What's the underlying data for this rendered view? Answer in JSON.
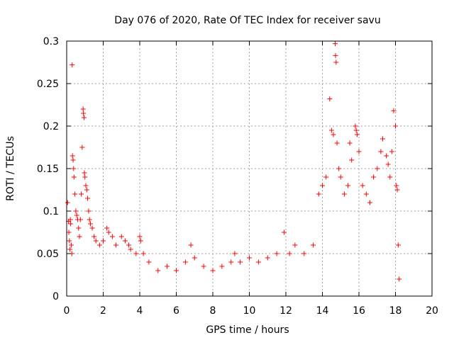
{
  "colors": {
    "series": "#ff0000",
    "grid": "#a0a0a0",
    "axis": "#000000"
  },
  "chart_data": {
    "type": "scatter",
    "title": "Day 076 of 2020, Rate Of TEC Index for receiver savu",
    "xlabel": "GPS time / hours",
    "ylabel": "ROTI / TECUs",
    "xlim": [
      0,
      20
    ],
    "ylim": [
      0,
      0.3
    ],
    "xticks": [
      0,
      2,
      4,
      6,
      8,
      10,
      12,
      14,
      16,
      18,
      20
    ],
    "yticks": [
      0,
      0.05,
      0.1,
      0.15,
      0.2,
      0.25,
      0.3
    ],
    "xtick_labels": [
      "0",
      "2",
      "4",
      "6",
      "8",
      "10",
      "12",
      "14",
      "16",
      "18",
      "20"
    ],
    "ytick_labels": [
      "0",
      "0.05",
      "0.1",
      "0.15",
      "0.2",
      "0.25",
      "0.3"
    ],
    "grid": true,
    "marker": "plus",
    "series": [
      {
        "name": "ROTI",
        "points": [
          [
            0.05,
            0.11
          ],
          [
            0.1,
            0.088
          ],
          [
            0.12,
            0.075
          ],
          [
            0.15,
            0.065
          ],
          [
            0.18,
            0.055
          ],
          [
            0.2,
            0.09
          ],
          [
            0.22,
            0.085
          ],
          [
            0.25,
            0.06
          ],
          [
            0.28,
            0.05
          ],
          [
            0.3,
            0.272
          ],
          [
            0.32,
            0.165
          ],
          [
            0.35,
            0.16
          ],
          [
            0.38,
            0.15
          ],
          [
            0.4,
            0.14
          ],
          [
            0.45,
            0.12
          ],
          [
            0.5,
            0.1
          ],
          [
            0.55,
            0.095
          ],
          [
            0.6,
            0.09
          ],
          [
            0.65,
            0.08
          ],
          [
            0.7,
            0.07
          ],
          [
            0.75,
            0.09
          ],
          [
            0.8,
            0.12
          ],
          [
            0.85,
            0.175
          ],
          [
            0.9,
            0.22
          ],
          [
            0.92,
            0.215
          ],
          [
            0.95,
            0.21
          ],
          [
            0.97,
            0.145
          ],
          [
            1.0,
            0.14
          ],
          [
            1.05,
            0.13
          ],
          [
            1.1,
            0.125
          ],
          [
            1.15,
            0.115
          ],
          [
            1.2,
            0.1
          ],
          [
            1.25,
            0.09
          ],
          [
            1.3,
            0.085
          ],
          [
            1.4,
            0.08
          ],
          [
            1.5,
            0.07
          ],
          [
            1.6,
            0.065
          ],
          [
            1.8,
            0.06
          ],
          [
            2.0,
            0.065
          ],
          [
            2.2,
            0.08
          ],
          [
            2.3,
            0.075
          ],
          [
            2.5,
            0.07
          ],
          [
            2.7,
            0.06
          ],
          [
            3.0,
            0.07
          ],
          [
            3.2,
            0.065
          ],
          [
            3.4,
            0.06
          ],
          [
            3.5,
            0.055
          ],
          [
            3.8,
            0.05
          ],
          [
            4.0,
            0.07
          ],
          [
            4.05,
            0.065
          ],
          [
            4.2,
            0.05
          ],
          [
            4.5,
            0.04
          ],
          [
            5.0,
            0.03
          ],
          [
            5.5,
            0.035
          ],
          [
            6.0,
            0.03
          ],
          [
            6.5,
            0.04
          ],
          [
            6.8,
            0.06
          ],
          [
            7.0,
            0.045
          ],
          [
            7.5,
            0.035
          ],
          [
            8.0,
            0.03
          ],
          [
            8.5,
            0.035
          ],
          [
            9.0,
            0.04
          ],
          [
            9.2,
            0.05
          ],
          [
            9.5,
            0.04
          ],
          [
            10.0,
            0.045
          ],
          [
            10.5,
            0.04
          ],
          [
            11.0,
            0.045
          ],
          [
            11.5,
            0.05
          ],
          [
            11.9,
            0.075
          ],
          [
            12.2,
            0.05
          ],
          [
            12.5,
            0.06
          ],
          [
            13.0,
            0.05
          ],
          [
            13.5,
            0.06
          ],
          [
            13.8,
            0.12
          ],
          [
            14.0,
            0.13
          ],
          [
            14.2,
            0.14
          ],
          [
            14.4,
            0.232
          ],
          [
            14.5,
            0.195
          ],
          [
            14.6,
            0.19
          ],
          [
            14.7,
            0.297
          ],
          [
            14.72,
            0.283
          ],
          [
            14.75,
            0.275
          ],
          [
            14.8,
            0.18
          ],
          [
            14.9,
            0.15
          ],
          [
            15.0,
            0.14
          ],
          [
            15.2,
            0.12
          ],
          [
            15.4,
            0.13
          ],
          [
            15.5,
            0.18
          ],
          [
            15.6,
            0.16
          ],
          [
            15.8,
            0.2
          ],
          [
            15.85,
            0.195
          ],
          [
            15.9,
            0.19
          ],
          [
            16.0,
            0.17
          ],
          [
            16.2,
            0.13
          ],
          [
            16.4,
            0.12
          ],
          [
            16.6,
            0.11
          ],
          [
            16.8,
            0.14
          ],
          [
            17.0,
            0.15
          ],
          [
            17.2,
            0.17
          ],
          [
            17.3,
            0.185
          ],
          [
            17.5,
            0.165
          ],
          [
            17.6,
            0.155
          ],
          [
            17.7,
            0.14
          ],
          [
            17.8,
            0.17
          ],
          [
            17.9,
            0.218
          ],
          [
            18.0,
            0.2
          ],
          [
            18.05,
            0.13
          ],
          [
            18.1,
            0.125
          ],
          [
            18.15,
            0.06
          ],
          [
            18.2,
            0.02
          ]
        ]
      }
    ]
  }
}
